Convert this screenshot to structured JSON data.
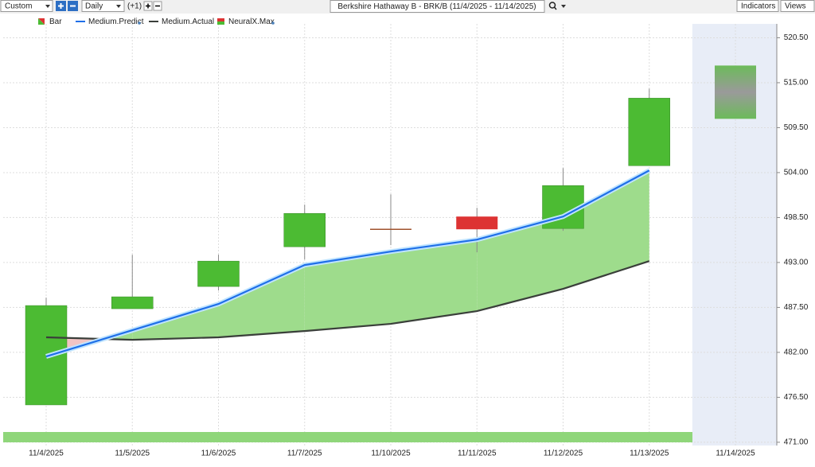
{
  "toolbar": {
    "range": "Custom",
    "period": "Daily",
    "offset": "(+1)",
    "title": "Berkshire Hathaway B - BRK/B (11/4/2025 - 11/14/2025)",
    "indicators": "Indicators",
    "views": "Views"
  },
  "chart_data": {
    "type": "candlestick",
    "categories": [
      "11/4/2025",
      "11/5/2025",
      "11/6/2025",
      "11/7/2025",
      "11/10/2025",
      "11/11/2025",
      "11/12/2025",
      "11/13/2025",
      "11/14/2025"
    ],
    "candles": {
      "name": "Bar",
      "up_color": "#4cbb33",
      "down_color": "#dd3333",
      "flat_color": "#a0522d",
      "open": [
        475.57,
        487.34,
        490.06,
        494.92,
        497.06,
        498.62,
        497.16,
        504.84,
        null
      ],
      "high": [
        488.7,
        493.95,
        493.95,
        500.08,
        501.34,
        499.69,
        504.55,
        514.27,
        null
      ],
      "low": [
        475.57,
        487.34,
        489.57,
        493.37,
        495.12,
        494.24,
        496.87,
        504.84,
        null
      ],
      "close": [
        487.73,
        488.8,
        493.17,
        499.01,
        497.06,
        497.06,
        502.41,
        513.11,
        null
      ]
    },
    "series": [
      {
        "name": "Medium.Predict",
        "color": "#1f6fe8",
        "values": [
          481.5,
          484.71,
          487.92,
          492.69,
          494.34,
          495.8,
          498.62,
          504.26,
          null
        ]
      },
      {
        "name": "Medium.Actual",
        "color": "#3a3f3a",
        "values": [
          483.84,
          483.54,
          483.84,
          484.61,
          485.49,
          487.05,
          489.77,
          493.17,
          null
        ]
      }
    ],
    "forecast": {
      "name": "NeuralX.Max",
      "high": [
        null,
        null,
        null,
        null,
        null,
        null,
        null,
        null,
        517.1
      ],
      "low": [
        null,
        null,
        null,
        null,
        null,
        null,
        null,
        null,
        510.58
      ]
    },
    "ylim": [
      470.6,
      522.2
    ],
    "yticks": [
      {
        "value": 471,
        "label": "471.00"
      },
      {
        "value": 476.5,
        "label": "476.50"
      },
      {
        "value": 482,
        "label": "482.00"
      },
      {
        "value": 487.5,
        "label": "487.50"
      },
      {
        "value": 493,
        "label": "493.00"
      },
      {
        "value": 498.5,
        "label": "498.50"
      },
      {
        "value": 504,
        "label": "504.00"
      },
      {
        "value": 509.5,
        "label": "509.50"
      },
      {
        "value": 515,
        "label": "515.00"
      },
      {
        "value": 520.5,
        "label": "520.50"
      }
    ],
    "grid": true
  }
}
